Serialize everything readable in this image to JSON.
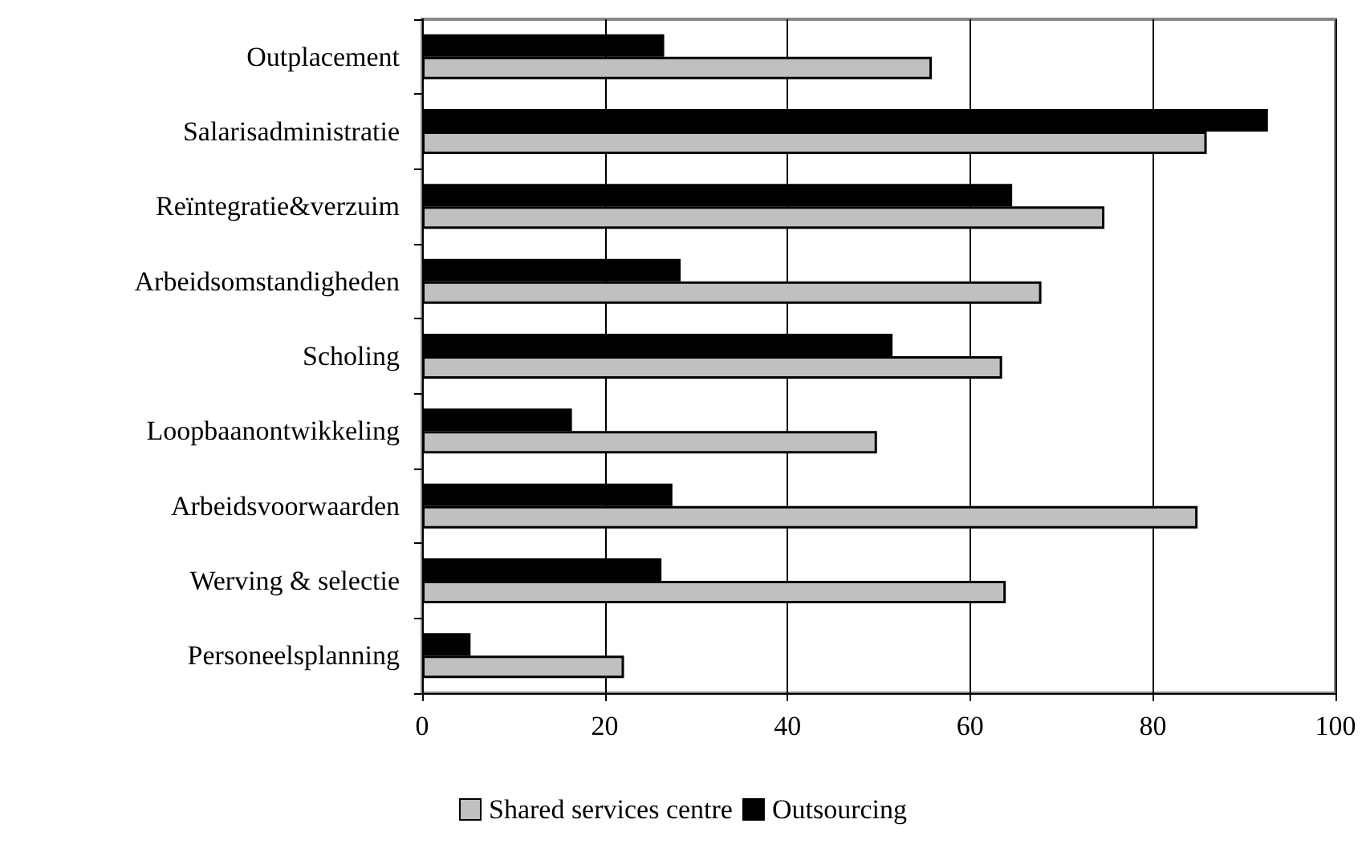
{
  "chart_data": {
    "type": "bar",
    "orientation": "horizontal",
    "categories": [
      "Outplacement",
      "Salarisadministratie",
      "Reïntegratie&verzuim",
      "Arbeidsomstandigheden",
      "Scholing",
      "Loopbaanontwikkeling",
      "Arbeidsvoorwaarden",
      "Werving & selectie",
      "Personeelsplanning"
    ],
    "series": [
      {
        "name": "Shared services centre",
        "color": "#c0c0c0",
        "values": [
          55.8,
          85.9,
          74.7,
          67.8,
          63.5,
          49.8,
          84.9,
          63.9,
          22.1
        ]
      },
      {
        "name": "Outsourcing",
        "color": "#000000",
        "values": [
          26.5,
          92.6,
          64.6,
          28.3,
          51.5,
          16.4,
          27.4,
          26.2,
          5.3
        ]
      }
    ],
    "xlim": [
      0,
      100
    ],
    "xticks": [
      0,
      20,
      40,
      60,
      80,
      100
    ],
    "grid": "x",
    "legend": "bottom"
  }
}
